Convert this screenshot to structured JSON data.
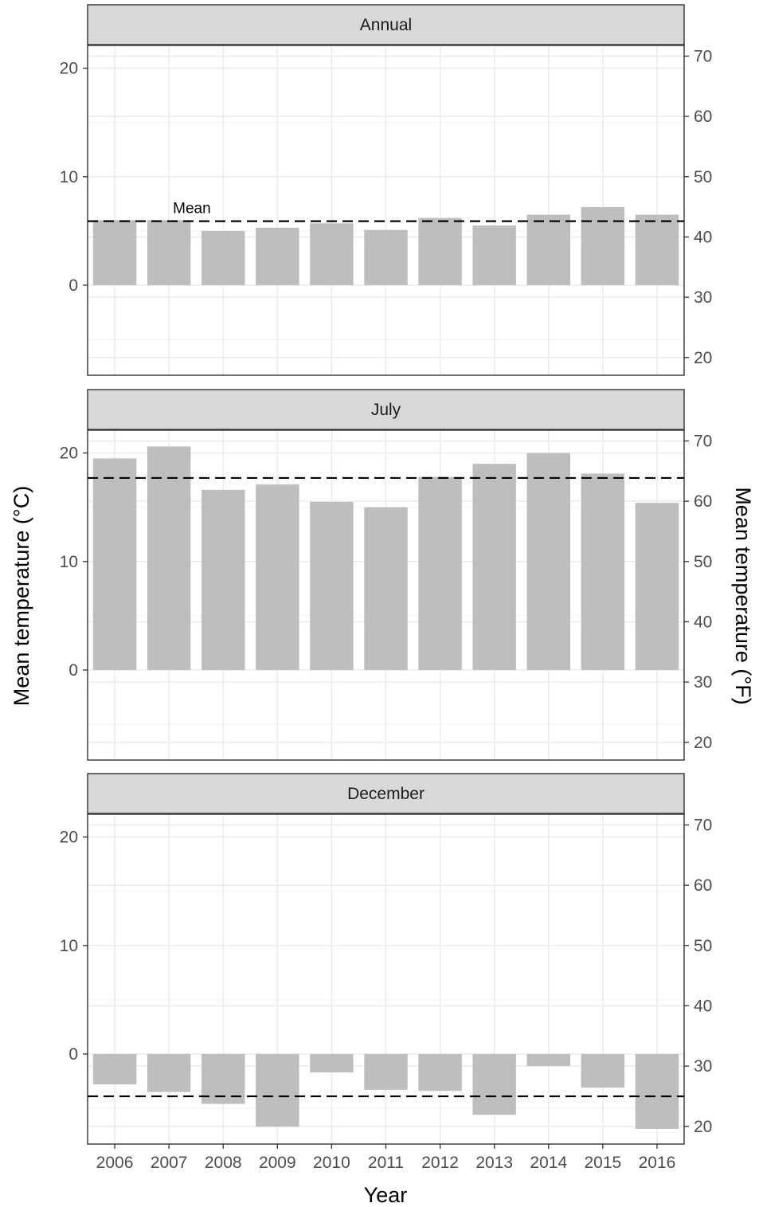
{
  "chart_data": {
    "type": "bar",
    "categories": [
      "2006",
      "2007",
      "2008",
      "2009",
      "2010",
      "2011",
      "2012",
      "2013",
      "2014",
      "2015",
      "2016"
    ],
    "xlabel": "Year",
    "ylabel": "Mean temperature (°C)",
    "ylabel_right": "Mean temperature (°F)",
    "ylim": [
      -8.3,
      22.1
    ],
    "yticks": [
      0,
      10,
      20
    ],
    "yticks_right": [
      20,
      30,
      40,
      50,
      60,
      70
    ],
    "grid": true,
    "bar_color": "#bebebe",
    "mean_line": "dashed",
    "annotation": "Mean",
    "facets": [
      {
        "name": "Annual",
        "values": [
          6.0,
          6.0,
          5.0,
          5.3,
          5.7,
          5.1,
          6.2,
          5.5,
          6.5,
          7.2,
          6.5
        ],
        "mean": 5.9
      },
      {
        "name": "July",
        "values": [
          19.5,
          20.6,
          16.6,
          17.1,
          15.5,
          15.0,
          17.8,
          19.0,
          20.0,
          18.1,
          15.4
        ],
        "mean": 17.7
      },
      {
        "name": "December",
        "values": [
          -2.8,
          -3.5,
          -4.6,
          -6.7,
          -1.7,
          -3.3,
          -3.4,
          -5.6,
          -1.1,
          -3.1,
          -6.9
        ],
        "mean": -3.9
      }
    ]
  }
}
